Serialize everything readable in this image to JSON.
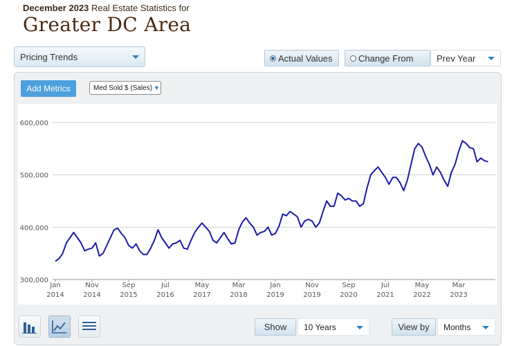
{
  "header": {
    "period": "December 2023",
    "subtitle_rest": " Real Estate Statistics for",
    "title": "Greater DC Area"
  },
  "controls": {
    "view_dropdown": "Pricing Trends",
    "actual_values": "Actual Values",
    "change_from": "Change From",
    "compare_dropdown": "Prev Year",
    "add_metrics": "Add Metrics",
    "metric_select": "Med Sold $ (Sales)"
  },
  "footer": {
    "show_label": "Show",
    "show_value": "10 Years",
    "view_by_label": "View by",
    "view_by_value": "Months"
  },
  "colors": {
    "line": "#1a1aa8",
    "accent": "#4da0dc"
  },
  "icons": [
    "bar-chart-icon",
    "line-chart-icon",
    "table-icon"
  ],
  "chart_data": {
    "type": "line",
    "series": [
      {
        "values": [
          335,
          340,
          350,
          370,
          380,
          390,
          380,
          370,
          355,
          358,
          360,
          370,
          345,
          350,
          365,
          380,
          395,
          398,
          388,
          380,
          365,
          360,
          368,
          355,
          348,
          348,
          360,
          375,
          395,
          380,
          370,
          360,
          368,
          370,
          375,
          360,
          358,
          375,
          390,
          400,
          408,
          400,
          392,
          375,
          370,
          380,
          390,
          378,
          368,
          370,
          395,
          410,
          418,
          408,
          400,
          385,
          390,
          392,
          400,
          385,
          388,
          402,
          425,
          422,
          430,
          425,
          420,
          400,
          412,
          415,
          412,
          400,
          408,
          430,
          450,
          440,
          440,
          465,
          460,
          452,
          455,
          450,
          450,
          440,
          445,
          475,
          500,
          508,
          515,
          505,
          495,
          482,
          495,
          495,
          485,
          470,
          490,
          520,
          550,
          560,
          553,
          535,
          520,
          500,
          515,
          505,
          490,
          478,
          505,
          520,
          545,
          565,
          560,
          552,
          550,
          525,
          532,
          527,
          525
        ]
      }
    ],
    "x_tick_labels": [
      [
        "Jan",
        "2014"
      ],
      [
        "Nov",
        "2014"
      ],
      [
        "Sep",
        "2015"
      ],
      [
        "Jul",
        "2016"
      ],
      [
        "May",
        "2017"
      ],
      [
        "Mar",
        "2018"
      ],
      [
        "Jan",
        "2019"
      ],
      [
        "Nov",
        "2019"
      ],
      [
        "Sep",
        "2020"
      ],
      [
        "Jul",
        "2021"
      ],
      [
        "May",
        "2022"
      ],
      [
        "Mar",
        "2023"
      ]
    ],
    "y_ticks": [
      300000,
      400000,
      500000,
      600000
    ],
    "y_tick_labels": [
      "300,000",
      "400,000",
      "500,000",
      "600,000"
    ],
    "ylim": [
      300000,
      600000
    ],
    "x_start": "Jan 2014",
    "grid": true
  }
}
